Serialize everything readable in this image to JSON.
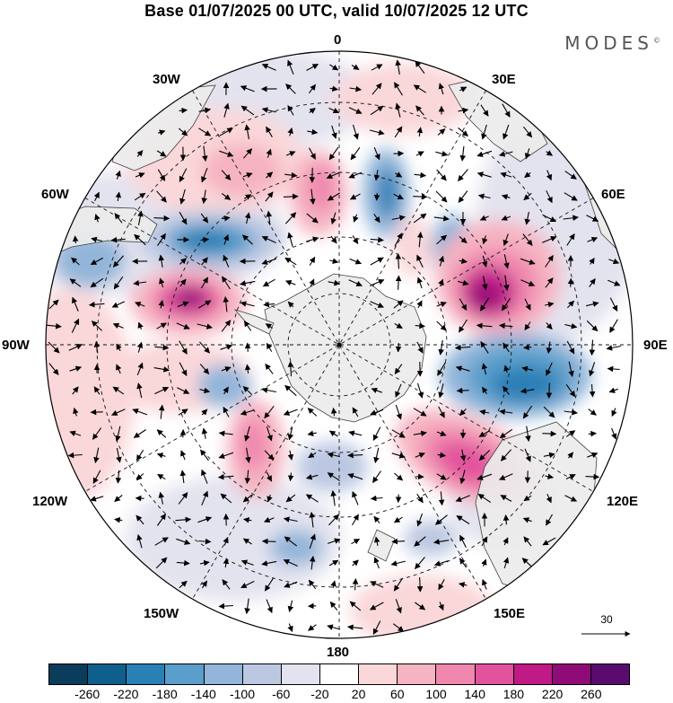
{
  "title": "Base 01/07/2025 00 UTC, valid 10/07/2025 12 UTC",
  "brand": "MODES",
  "brand_mark": "©",
  "longitude_labels": {
    "top": "0",
    "bottom": "180",
    "left": "90W",
    "right": "90E",
    "w30": "30W",
    "w60": "60W",
    "w120": "120W",
    "w150": "150W",
    "e30": "30E",
    "e60": "60E",
    "e120": "120E",
    "e150": "150E"
  },
  "reference_vector": "30",
  "colorbar": {
    "colors": [
      "#0a3c5c",
      "#0f5f8c",
      "#2a7fb5",
      "#5a9ecb",
      "#92b5d9",
      "#bcc8e2",
      "#e3e3ef",
      "#ffffff",
      "#fad7d9",
      "#f6b3c1",
      "#ef87ae",
      "#e2529d",
      "#c01a87",
      "#8e0b78",
      "#5a0b6e"
    ],
    "ticks": [
      "-260",
      "-220",
      "-180",
      "-140",
      "-100",
      "-60",
      "-20",
      "20",
      "60",
      "100",
      "140",
      "180",
      "220",
      "260"
    ]
  },
  "map_colors": {
    "land": "#ececec",
    "coast": "#333333"
  }
}
